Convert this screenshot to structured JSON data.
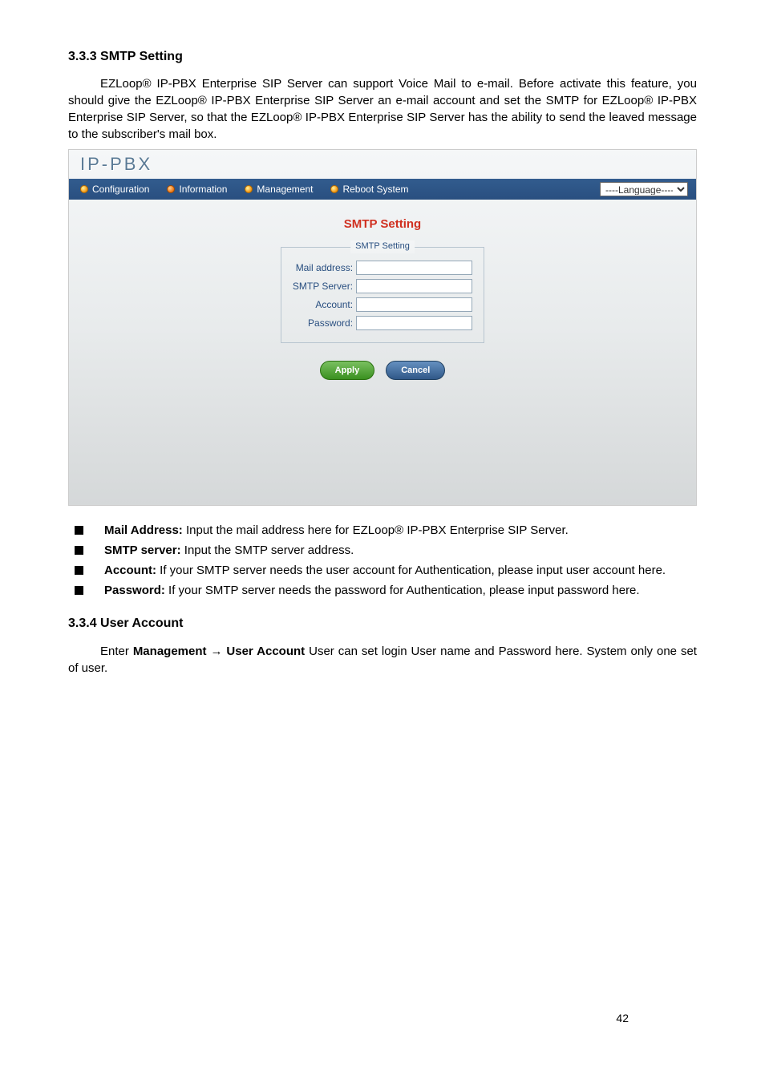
{
  "section333": {
    "heading": "3.3.3 SMTP Setting",
    "paragraph": "EZLoop® IP-PBX Enterprise SIP Server can support Voice Mail to e-mail. Before activate this feature, you should give the EZLoop® IP-PBX Enterprise SIP Server an e-mail account and set the SMTP for EZLoop® IP-PBX Enterprise SIP Server, so that the EZLoop® IP-PBX Enterprise SIP Server has the ability to send the leaved message to the subscriber's mail box."
  },
  "app": {
    "logo": "IP-PBX",
    "nav": {
      "configuration": "Configuration",
      "information": "Information",
      "management": "Management",
      "reboot": "Reboot System"
    },
    "language_placeholder": "----Language----",
    "panel": {
      "title": "SMTP Setting",
      "legend": "SMTP Setting",
      "fields": {
        "mail_address_label": "Mail address:",
        "mail_address_value": "",
        "smtp_server_label": "SMTP Server:",
        "smtp_server_value": "",
        "account_label": "Account:",
        "account_value": "",
        "password_label": "Password:",
        "password_value": ""
      },
      "buttons": {
        "apply": "Apply",
        "cancel": "Cancel"
      }
    }
  },
  "bullets": [
    {
      "bold": "Mail Address:",
      "text": " Input the mail address here for EZLoop® IP-PBX Enterprise SIP Server."
    },
    {
      "bold": "SMTP server:",
      "text": " Input the SMTP server address."
    },
    {
      "bold": "Account:",
      "text": " If your SMTP server needs the user account for Authentication, please input user account here."
    },
    {
      "bold": "Password:",
      "text": " If your SMTP server needs the password for Authentication, please input password here."
    }
  ],
  "section334": {
    "heading": "3.3.4 User Account",
    "para_pre": "Enter ",
    "para_bold": "Management → User Account",
    "para_post": " User can set login User name and Password here. System only one set of user."
  },
  "page_number": "42",
  "colors": {
    "nav_bg_top": "#325c8e",
    "nav_bg_bottom": "#294f80",
    "panel_title_color": "#d03020",
    "label_color": "#294f80",
    "apply_btn_top": "#7ac060",
    "apply_btn_bottom": "#3a9020",
    "cancel_btn_top": "#6590c0",
    "cancel_btn_bottom": "#305888"
  }
}
